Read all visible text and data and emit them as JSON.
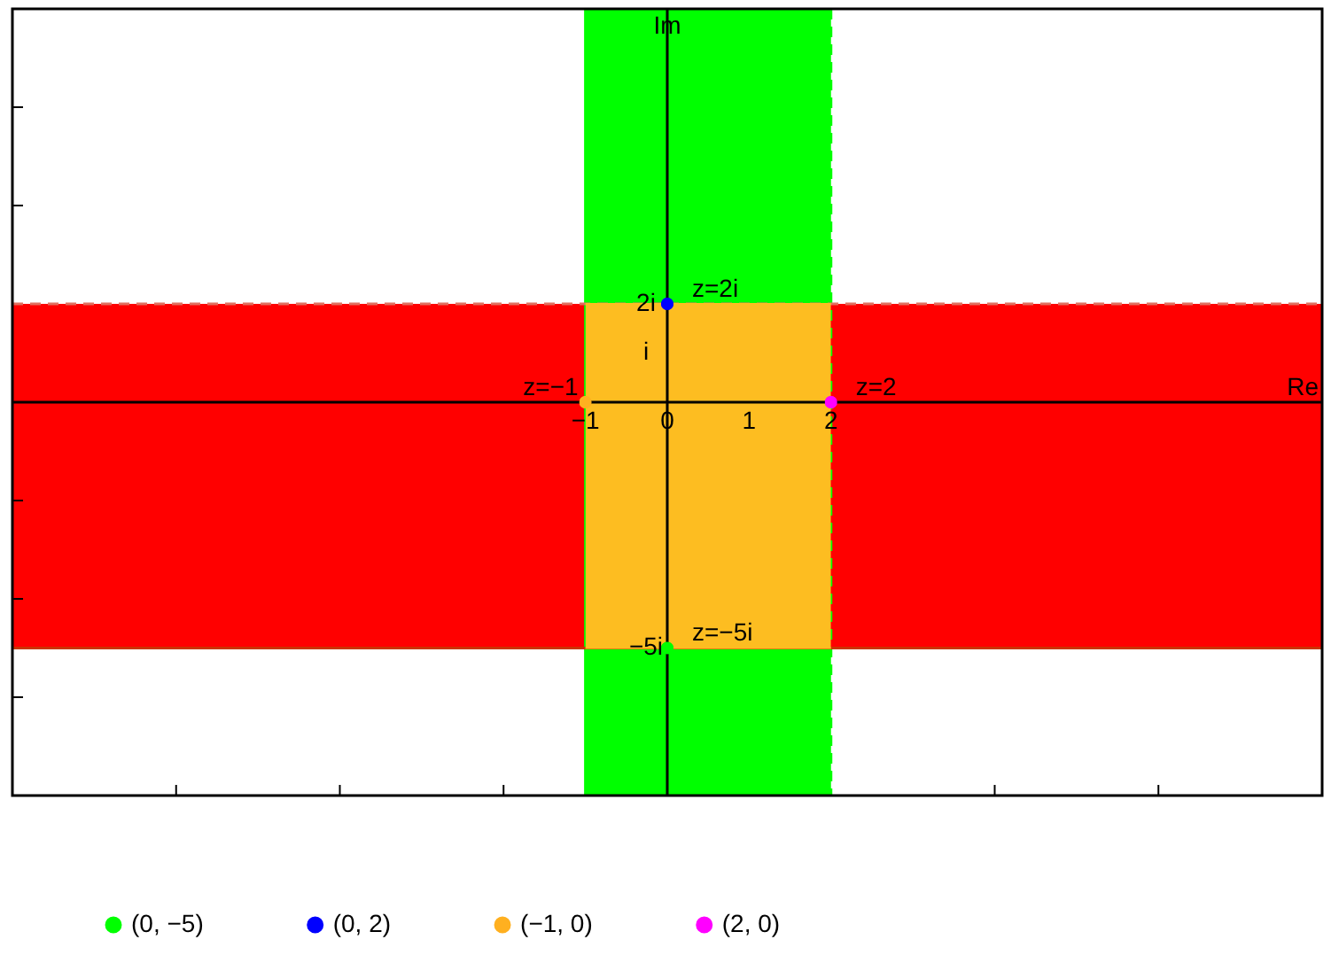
{
  "chart_data": {
    "type": "scatter",
    "xlabel": "Re",
    "ylabel": "Im",
    "xlim": [
      -8,
      8
    ],
    "ylim": [
      -8,
      8
    ],
    "xticks": [
      {
        "value": -6,
        "label": null
      },
      {
        "value": -4,
        "label": null
      },
      {
        "value": -2,
        "label": null
      },
      {
        "value": -1,
        "label": "−1"
      },
      0,
      1,
      2,
      {
        "value": 4,
        "label": null
      },
      {
        "value": 6,
        "label": null
      }
    ],
    "yticks": [
      {
        "value": -6,
        "label": null
      },
      {
        "value": -5,
        "label": "−5i"
      },
      {
        "value": -4,
        "label": null
      },
      {
        "value": -2,
        "label": null
      },
      {
        "value": 1,
        "label": "i"
      },
      {
        "value": 2,
        "label": "2i"
      },
      {
        "value": 4,
        "label": null
      },
      {
        "value": 6,
        "label": null
      }
    ],
    "legend": "bottom",
    "marker": "circle",
    "bands": [
      {
        "axis": "x",
        "from": -1,
        "to": 2,
        "label": null,
        "color": "#00ff00"
      },
      {
        "axis": "y",
        "from": -5,
        "to": 2,
        "label": null,
        "color": "#ff0000"
      }
    ],
    "ref_lines": [
      {
        "axis": "x",
        "value": -1,
        "label": null,
        "color": "#00ff00",
        "line_style": "solid"
      },
      {
        "axis": "x",
        "value": 2,
        "label": null,
        "color": "#00ff00",
        "line_style": "dashed"
      },
      {
        "axis": "y",
        "value": 2,
        "label": null,
        "color": "#e07060",
        "line_style": "dashed"
      },
      {
        "axis": "y",
        "value": -5,
        "label": null,
        "color": "#cc3300",
        "line_style": "solid"
      }
    ],
    "series": [
      {
        "type": "area",
        "color": "#fdbd21",
        "marker": "none",
        "x": [
          -1,
          2
        ],
        "values": [
          2,
          2
        ]
      },
      {
        "type": "area",
        "color": "#fdbd21",
        "marker": "none",
        "x": [
          -1,
          2
        ],
        "values": [
          -5,
          -5
        ]
      },
      {
        "name": "(0, −5)",
        "color": "#00ff00",
        "x": [
          0
        ],
        "values": [
          -5
        ]
      },
      {
        "name": "(0, 2)",
        "color": "#0000ff",
        "x": [
          0
        ],
        "values": [
          2
        ]
      },
      {
        "name": "(−1, 0)",
        "color": "#ffb020",
        "x": [
          -1
        ],
        "values": [
          0
        ]
      },
      {
        "name": "(2, 0)",
        "color": "#ff00ff",
        "x": [
          2
        ],
        "values": [
          0
        ]
      }
    ],
    "annotations": [
      {
        "text": "z=2i",
        "x": 0,
        "y": 2
      },
      {
        "text": "z=−1",
        "x": -1,
        "y": 0
      },
      {
        "text": "z=2",
        "x": 2,
        "y": 0
      },
      {
        "text": "z=−5i",
        "x": 0,
        "y": -5
      }
    ]
  }
}
